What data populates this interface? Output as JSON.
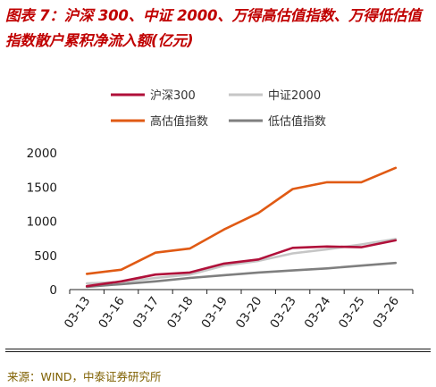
{
  "title": "图表 7：沪深 300、中证 2000、万得高估值指数、万得低估值指数散户累积净流入额(亿元)",
  "source": "来源：WIND，中泰证券研究所",
  "chart_data": {
    "type": "line",
    "categories": [
      "03-13",
      "03-16",
      "03-17",
      "03-18",
      "03-19",
      "03-20",
      "03-23",
      "03-24",
      "03-25",
      "03-26"
    ],
    "ylim": [
      0,
      2000
    ],
    "yticks": [
      0,
      500,
      1000,
      1500,
      2000
    ],
    "grid": false,
    "legend_position": "top",
    "series": [
      {
        "name": "沪深300",
        "color": "#b0103a",
        "values": [
          50,
          120,
          220,
          250,
          380,
          440,
          610,
          630,
          620,
          720
        ]
      },
      {
        "name": "中证2000",
        "color": "#c6c6c6",
        "values": [
          90,
          110,
          170,
          220,
          350,
          420,
          530,
          590,
          660,
          740
        ]
      },
      {
        "name": "高估值指数",
        "color": "#e05a14",
        "values": [
          230,
          290,
          540,
          600,
          880,
          1120,
          1470,
          1570,
          1570,
          1780
        ]
      },
      {
        "name": "低估值指数",
        "color": "#7f7f7f",
        "values": [
          40,
          80,
          120,
          170,
          210,
          250,
          280,
          310,
          350,
          390
        ]
      }
    ]
  }
}
